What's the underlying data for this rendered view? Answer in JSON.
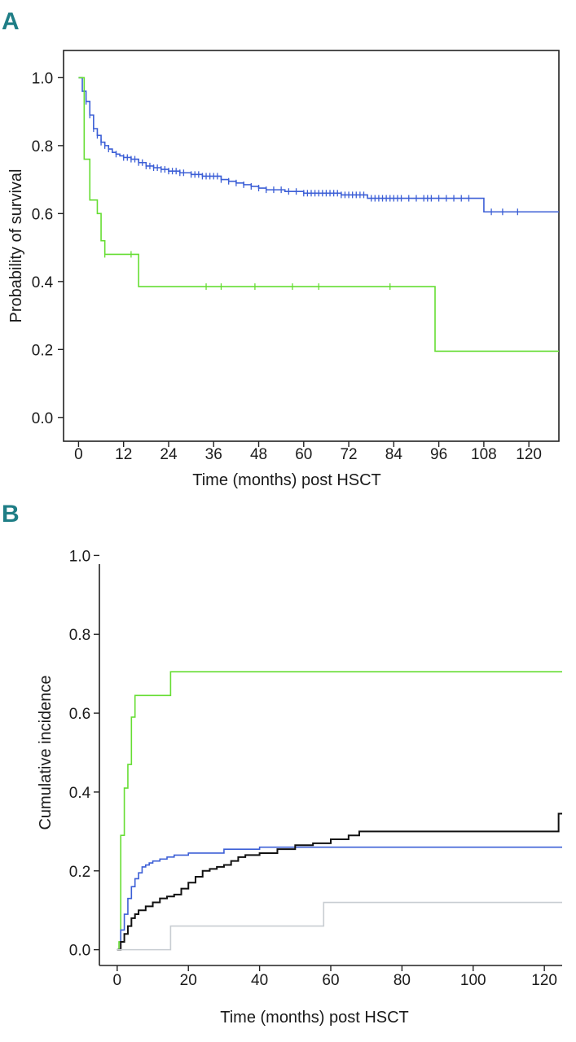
{
  "colors": {
    "panel_letter": "#1f7e86",
    "series_green": "#66dd33",
    "series_blue": "#3c5fd6",
    "series_black": "#111111",
    "series_grey": "#c8cdd2",
    "axis": "#222222"
  },
  "chart_data": [
    {
      "panel": "A",
      "type": "line",
      "subtype": "kaplan-meier",
      "xlabel": "Time (months) post HSCT",
      "ylabel": "Probability of survival",
      "xlim": [
        -4,
        128
      ],
      "ylim": [
        -0.07,
        1.08
      ],
      "xticks": [
        "0",
        "12",
        "24",
        "36",
        "48",
        "60",
        "72",
        "84",
        "96",
        "108",
        "120"
      ],
      "xtick_values": [
        0,
        12,
        24,
        36,
        48,
        60,
        72,
        84,
        96,
        108,
        120
      ],
      "yticks": [
        "0.0",
        "0.2",
        "0.4",
        "0.6",
        "0.8",
        "1.0"
      ],
      "ytick_values": [
        0,
        0.2,
        0.4,
        0.6,
        0.8,
        1.0
      ],
      "frame": "box",
      "series": [
        {
          "name": "blue",
          "color_key": "series_blue",
          "x": [
            0,
            1,
            2,
            3,
            4,
            5,
            6,
            7,
            8,
            9,
            10,
            11,
            12,
            14,
            16,
            18,
            20,
            22,
            24,
            27,
            30,
            33,
            36,
            38,
            40,
            42,
            44,
            46,
            48,
            50,
            55,
            60,
            65,
            70,
            75,
            77,
            80,
            90,
            100,
            108,
            108.01,
            128
          ],
          "y": [
            1.0,
            0.96,
            0.93,
            0.89,
            0.85,
            0.83,
            0.81,
            0.8,
            0.79,
            0.78,
            0.775,
            0.77,
            0.765,
            0.76,
            0.75,
            0.74,
            0.735,
            0.73,
            0.725,
            0.72,
            0.715,
            0.71,
            0.71,
            0.7,
            0.695,
            0.69,
            0.685,
            0.68,
            0.675,
            0.67,
            0.665,
            0.66,
            0.66,
            0.655,
            0.655,
            0.645,
            0.645,
            0.645,
            0.645,
            0.645,
            0.605,
            0.605
          ],
          "censor_x": [
            2,
            3,
            4,
            5,
            6,
            7,
            8,
            10,
            12,
            13,
            14,
            15,
            16,
            17,
            18,
            19,
            20,
            21,
            22,
            23,
            24,
            25,
            26,
            27,
            28,
            30,
            31,
            32,
            33,
            34,
            35,
            36,
            37,
            38,
            40,
            42,
            44,
            46,
            48,
            50,
            52,
            54,
            56,
            58,
            60,
            61,
            62,
            63,
            64,
            65,
            66,
            67,
            68,
            69,
            70,
            71,
            72,
            73,
            74,
            75,
            76,
            78,
            79,
            80,
            81,
            82,
            83,
            84,
            85,
            86,
            88,
            90,
            92,
            93,
            94,
            96,
            98,
            100,
            102,
            104,
            110,
            113,
            117
          ]
        },
        {
          "name": "green",
          "color_key": "series_green",
          "x": [
            0,
            1.5,
            3,
            5,
            6,
            7,
            16,
            95,
            128
          ],
          "y": [
            1.0,
            0.76,
            0.64,
            0.6,
            0.52,
            0.48,
            0.385,
            0.195,
            0.195
          ],
          "censor_x": [
            7,
            14,
            34,
            38,
            47,
            57,
            64,
            83
          ]
        }
      ]
    },
    {
      "panel": "B",
      "type": "line",
      "subtype": "cumulative-incidence",
      "xlabel": "Time (months) post HSCT",
      "ylabel": "Cumulative incidence",
      "xlim": [
        -5,
        125
      ],
      "ylim": [
        -0.04,
        1.04
      ],
      "xticks": [
        "0",
        "20",
        "40",
        "60",
        "80",
        "100",
        "120"
      ],
      "xtick_values": [
        0,
        20,
        40,
        60,
        80,
        100,
        120
      ],
      "yticks": [
        "0.0",
        "0.2",
        "0.4",
        "0.6",
        "0.8",
        "1.0"
      ],
      "ytick_values": [
        0,
        0.2,
        0.4,
        0.6,
        0.8,
        1.0
      ],
      "frame": "open",
      "series": [
        {
          "name": "green",
          "color_key": "series_green",
          "x": [
            0,
            0.5,
            1,
            2,
            3,
            4,
            5,
            6,
            15,
            125
          ],
          "y": [
            0,
            0.02,
            0.29,
            0.41,
            0.47,
            0.59,
            0.645,
            0.645,
            0.705,
            0.705
          ],
          "censor_x": []
        },
        {
          "name": "blue",
          "color_key": "series_blue",
          "x": [
            0,
            1,
            2,
            3,
            4,
            5,
            6,
            7,
            8,
            9,
            10,
            11,
            12,
            14,
            16,
            20,
            30,
            40,
            50,
            60,
            70,
            80,
            100,
            125
          ],
          "y": [
            0,
            0.05,
            0.09,
            0.13,
            0.16,
            0.18,
            0.195,
            0.21,
            0.215,
            0.22,
            0.225,
            0.225,
            0.23,
            0.235,
            0.24,
            0.245,
            0.255,
            0.26,
            0.26,
            0.26,
            0.26,
            0.26,
            0.26,
            0.26
          ],
          "censor_x": []
        },
        {
          "name": "black",
          "color_key": "series_black",
          "x": [
            0,
            1,
            2,
            3,
            4,
            5,
            6,
            8,
            10,
            12,
            14,
            16,
            18,
            20,
            22,
            24,
            26,
            28,
            30,
            32,
            34,
            36,
            40,
            45,
            50,
            55,
            60,
            65,
            68,
            75,
            90,
            110,
            123.8,
            124,
            125
          ],
          "y": [
            0,
            0.02,
            0.04,
            0.06,
            0.08,
            0.09,
            0.1,
            0.11,
            0.12,
            0.13,
            0.135,
            0.14,
            0.155,
            0.17,
            0.185,
            0.2,
            0.205,
            0.21,
            0.215,
            0.225,
            0.235,
            0.24,
            0.245,
            0.255,
            0.265,
            0.27,
            0.28,
            0.29,
            0.3,
            0.3,
            0.3,
            0.3,
            0.3,
            0.345,
            0.345
          ],
          "censor_x": []
        },
        {
          "name": "grey",
          "color_key": "series_grey",
          "x": [
            0,
            15,
            58,
            125
          ],
          "y": [
            0,
            0.06,
            0.12,
            0.12
          ],
          "censor_x": []
        }
      ]
    }
  ]
}
